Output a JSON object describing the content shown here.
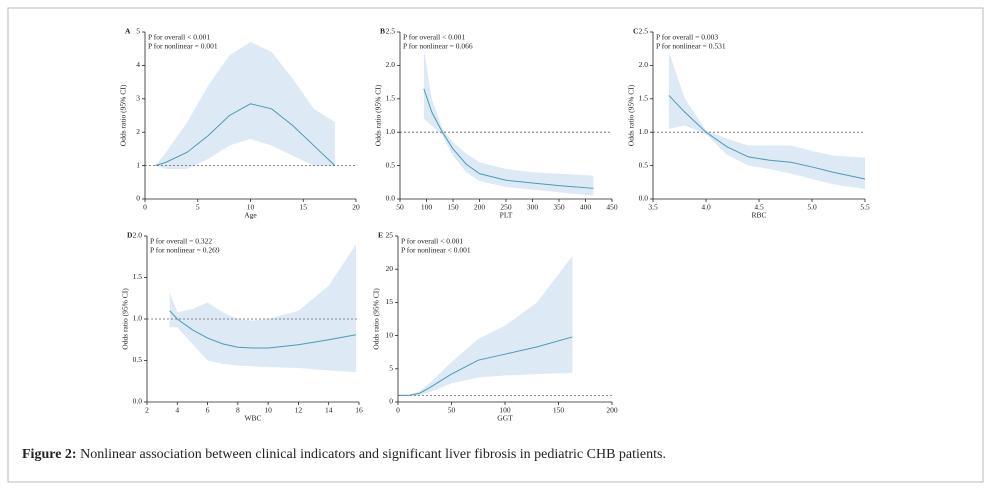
{
  "chart_data": [
    {
      "type": "line",
      "panel": "A",
      "annotations": [
        "P for overall < 0.001",
        "P for nonlinear = 0.001"
      ],
      "x_label": "Age",
      "y_label": "Odds ratio (95% CI)",
      "xlim": [
        0,
        20
      ],
      "xticks": [
        0,
        5,
        10,
        15,
        20
      ],
      "ylim": [
        0,
        5
      ],
      "yticks": [
        0,
        1,
        2,
        3,
        4,
        5
      ],
      "reference_line": 1,
      "color": "#4a9bb5",
      "band_color": "#dde9f5",
      "x": [
        1,
        2,
        4,
        6,
        8,
        10,
        12,
        14,
        16,
        18
      ],
      "values": [
        1.0,
        1.1,
        1.4,
        1.9,
        2.5,
        2.85,
        2.7,
        2.2,
        1.6,
        1.0
      ],
      "upper": [
        1.0,
        1.4,
        2.3,
        3.4,
        4.3,
        4.7,
        4.4,
        3.6,
        2.7,
        2.3
      ],
      "lower": [
        1.0,
        0.9,
        0.9,
        1.2,
        1.6,
        1.8,
        1.6,
        1.3,
        1.0,
        1.0
      ]
    },
    {
      "type": "line",
      "panel": "B",
      "annotations": [
        "P for overall < 0.001",
        "P for nonlinear = 0.066"
      ],
      "x_label": "PLT",
      "y_label": "Odds ratio (95% CI)",
      "xlim": [
        50,
        450
      ],
      "xticks": [
        50,
        100,
        150,
        200,
        250,
        300,
        350,
        400,
        450
      ],
      "ylim": [
        0,
        2.5
      ],
      "yticks": [
        {
          "value": 0,
          "label": "0.0"
        },
        0.5,
        {
          "value": 1,
          "label": "1.0"
        },
        1.5,
        {
          "value": 2,
          "label": "2.0"
        },
        2.5
      ],
      "reference_line": 1,
      "color": "#4a9bb5",
      "band_color": "#dde9f5",
      "x": [
        95,
        110,
        130,
        150,
        175,
        200,
        250,
        300,
        350,
        415
      ],
      "values": [
        1.65,
        1.3,
        1.0,
        0.75,
        0.52,
        0.38,
        0.28,
        0.24,
        0.2,
        0.16
      ],
      "upper": [
        2.25,
        1.5,
        1.05,
        0.85,
        0.68,
        0.55,
        0.45,
        0.4,
        0.38,
        0.35
      ],
      "lower": [
        1.2,
        1.1,
        0.95,
        0.65,
        0.4,
        0.27,
        0.18,
        0.14,
        0.1,
        0.05
      ]
    },
    {
      "type": "line",
      "panel": "C",
      "annotations": [
        "P for overall = 0.003",
        "P for nonlinear = 0.531"
      ],
      "x_label": "RBC",
      "y_label": "Odds ratio (95% CI)",
      "xlim": [
        3.5,
        5.5
      ],
      "xticks": [
        3.5,
        {
          "value": 4,
          "label": "4.0"
        },
        4.5,
        {
          "value": 5,
          "label": "5.0"
        },
        5.5
      ],
      "ylim": [
        0,
        2.5
      ],
      "yticks": [
        {
          "value": 0,
          "label": "0.0"
        },
        0.5,
        {
          "value": 1,
          "label": "1.0"
        },
        1.5,
        {
          "value": 2,
          "label": "2.0"
        },
        2.5
      ],
      "reference_line": 1,
      "color": "#4a9bb5",
      "band_color": "#dde9f5",
      "x": [
        3.65,
        3.8,
        4.0,
        4.2,
        4.4,
        4.6,
        4.8,
        5.0,
        5.2,
        5.5
      ],
      "values": [
        1.55,
        1.3,
        1.0,
        0.78,
        0.63,
        0.58,
        0.55,
        0.48,
        0.4,
        0.3
      ],
      "upper": [
        2.2,
        1.5,
        1.03,
        0.9,
        0.8,
        0.8,
        0.8,
        0.72,
        0.65,
        0.62
      ],
      "lower": [
        1.05,
        1.1,
        0.97,
        0.66,
        0.5,
        0.45,
        0.38,
        0.3,
        0.22,
        0.15
      ]
    },
    {
      "type": "line",
      "panel": "D",
      "annotations": [
        "P for overall = 0.322",
        "P for nonlinear = 0.269"
      ],
      "x_label": "WBC",
      "y_label": "Odds ratio (95% CI)",
      "xlim": [
        2,
        16
      ],
      "xticks": [
        2,
        4,
        6,
        8,
        10,
        12,
        14,
        16
      ],
      "ylim": [
        0,
        2
      ],
      "yticks": [
        {
          "value": 0,
          "label": "0.0"
        },
        0.5,
        {
          "value": 1,
          "label": "1.0"
        },
        1.5,
        {
          "value": 2,
          "label": "2.0"
        }
      ],
      "reference_line": 1,
      "color": "#4a9bb5",
      "band_color": "#dde9f5",
      "x": [
        3.5,
        4,
        5,
        6,
        7,
        8,
        9,
        10,
        12,
        14,
        15.8
      ],
      "values": [
        1.1,
        1.0,
        0.87,
        0.77,
        0.7,
        0.66,
        0.65,
        0.65,
        0.69,
        0.75,
        0.81
      ],
      "upper": [
        1.32,
        1.08,
        1.12,
        1.2,
        1.08,
        1.0,
        0.98,
        1.0,
        1.1,
        1.4,
        1.9
      ],
      "lower": [
        0.9,
        0.9,
        0.7,
        0.5,
        0.46,
        0.44,
        0.43,
        0.42,
        0.41,
        0.38,
        0.36
      ]
    },
    {
      "type": "line",
      "panel": "E",
      "annotations": [
        "P for overall < 0.001",
        "P for nonlinear < 0.001"
      ],
      "x_label": "GGT",
      "y_label": "Odds ratio (95% CI)",
      "xlim": [
        0,
        200
      ],
      "xticks": [
        0,
        50,
        100,
        150,
        200
      ],
      "ylim": [
        0,
        25
      ],
      "yticks": [
        0,
        5,
        10,
        15,
        20,
        25
      ],
      "reference_line": 1,
      "color": "#4a9bb5",
      "band_color": "#dde9f5",
      "x": [
        0,
        10,
        20,
        30,
        50,
        75,
        100,
        130,
        163
      ],
      "values": [
        1.0,
        1.0,
        1.3,
        2.2,
        4.2,
        6.3,
        7.2,
        8.3,
        9.8
      ],
      "upper": [
        1.1,
        1.1,
        1.6,
        2.9,
        6.0,
        9.5,
        11.5,
        15,
        22
      ],
      "lower": [
        0.9,
        0.9,
        1.0,
        1.5,
        2.8,
        3.7,
        4.0,
        4.2,
        4.4
      ]
    }
  ],
  "caption": {
    "label": "Figure 2:",
    "text": "Nonlinear association between clinical indicators and significant liver fibrosis in pediatric CHB patients."
  }
}
